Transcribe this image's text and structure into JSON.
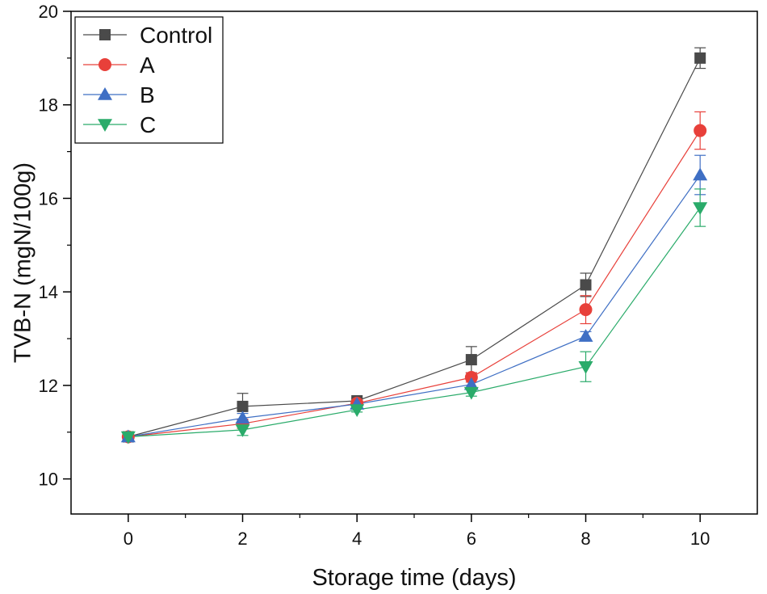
{
  "chart_data": {
    "type": "line",
    "title": "",
    "xlabel": "Storage time (days)",
    "ylabel": "TVB-N (mgN/100g)",
    "x": [
      0,
      2,
      4,
      6,
      8,
      10
    ],
    "xlim": [
      -1,
      11
    ],
    "ylim": [
      9.25,
      20
    ],
    "xticks": [
      0,
      2,
      4,
      6,
      8,
      10
    ],
    "yticks": [
      10,
      12,
      14,
      16,
      18,
      20
    ],
    "grid": false,
    "legend_position": "top-left",
    "series": [
      {
        "name": "Control",
        "marker": "square",
        "color": "#4a4a4a",
        "values": [
          10.9,
          11.55,
          11.67,
          12.55,
          14.15,
          19.0
        ],
        "errors": [
          0.05,
          0.28,
          0.06,
          0.28,
          0.25,
          0.22
        ]
      },
      {
        "name": "A",
        "marker": "circle",
        "color": "#e8403a",
        "values": [
          10.9,
          11.18,
          11.62,
          12.17,
          13.62,
          17.45
        ],
        "errors": [
          0.05,
          0.1,
          0.06,
          0.1,
          0.3,
          0.4
        ]
      },
      {
        "name": "B",
        "marker": "triangle-up",
        "color": "#3f6fc4",
        "values": [
          10.9,
          11.3,
          11.6,
          12.02,
          13.05,
          16.5
        ],
        "errors": [
          0.05,
          0.1,
          0.05,
          0.1,
          0.1,
          0.42
        ]
      },
      {
        "name": "C",
        "marker": "triangle-down",
        "color": "#2aab6a",
        "values": [
          10.9,
          11.05,
          11.48,
          11.85,
          12.4,
          15.8
        ],
        "errors": [
          0.05,
          0.12,
          0.05,
          0.08,
          0.32,
          0.4
        ]
      }
    ]
  }
}
